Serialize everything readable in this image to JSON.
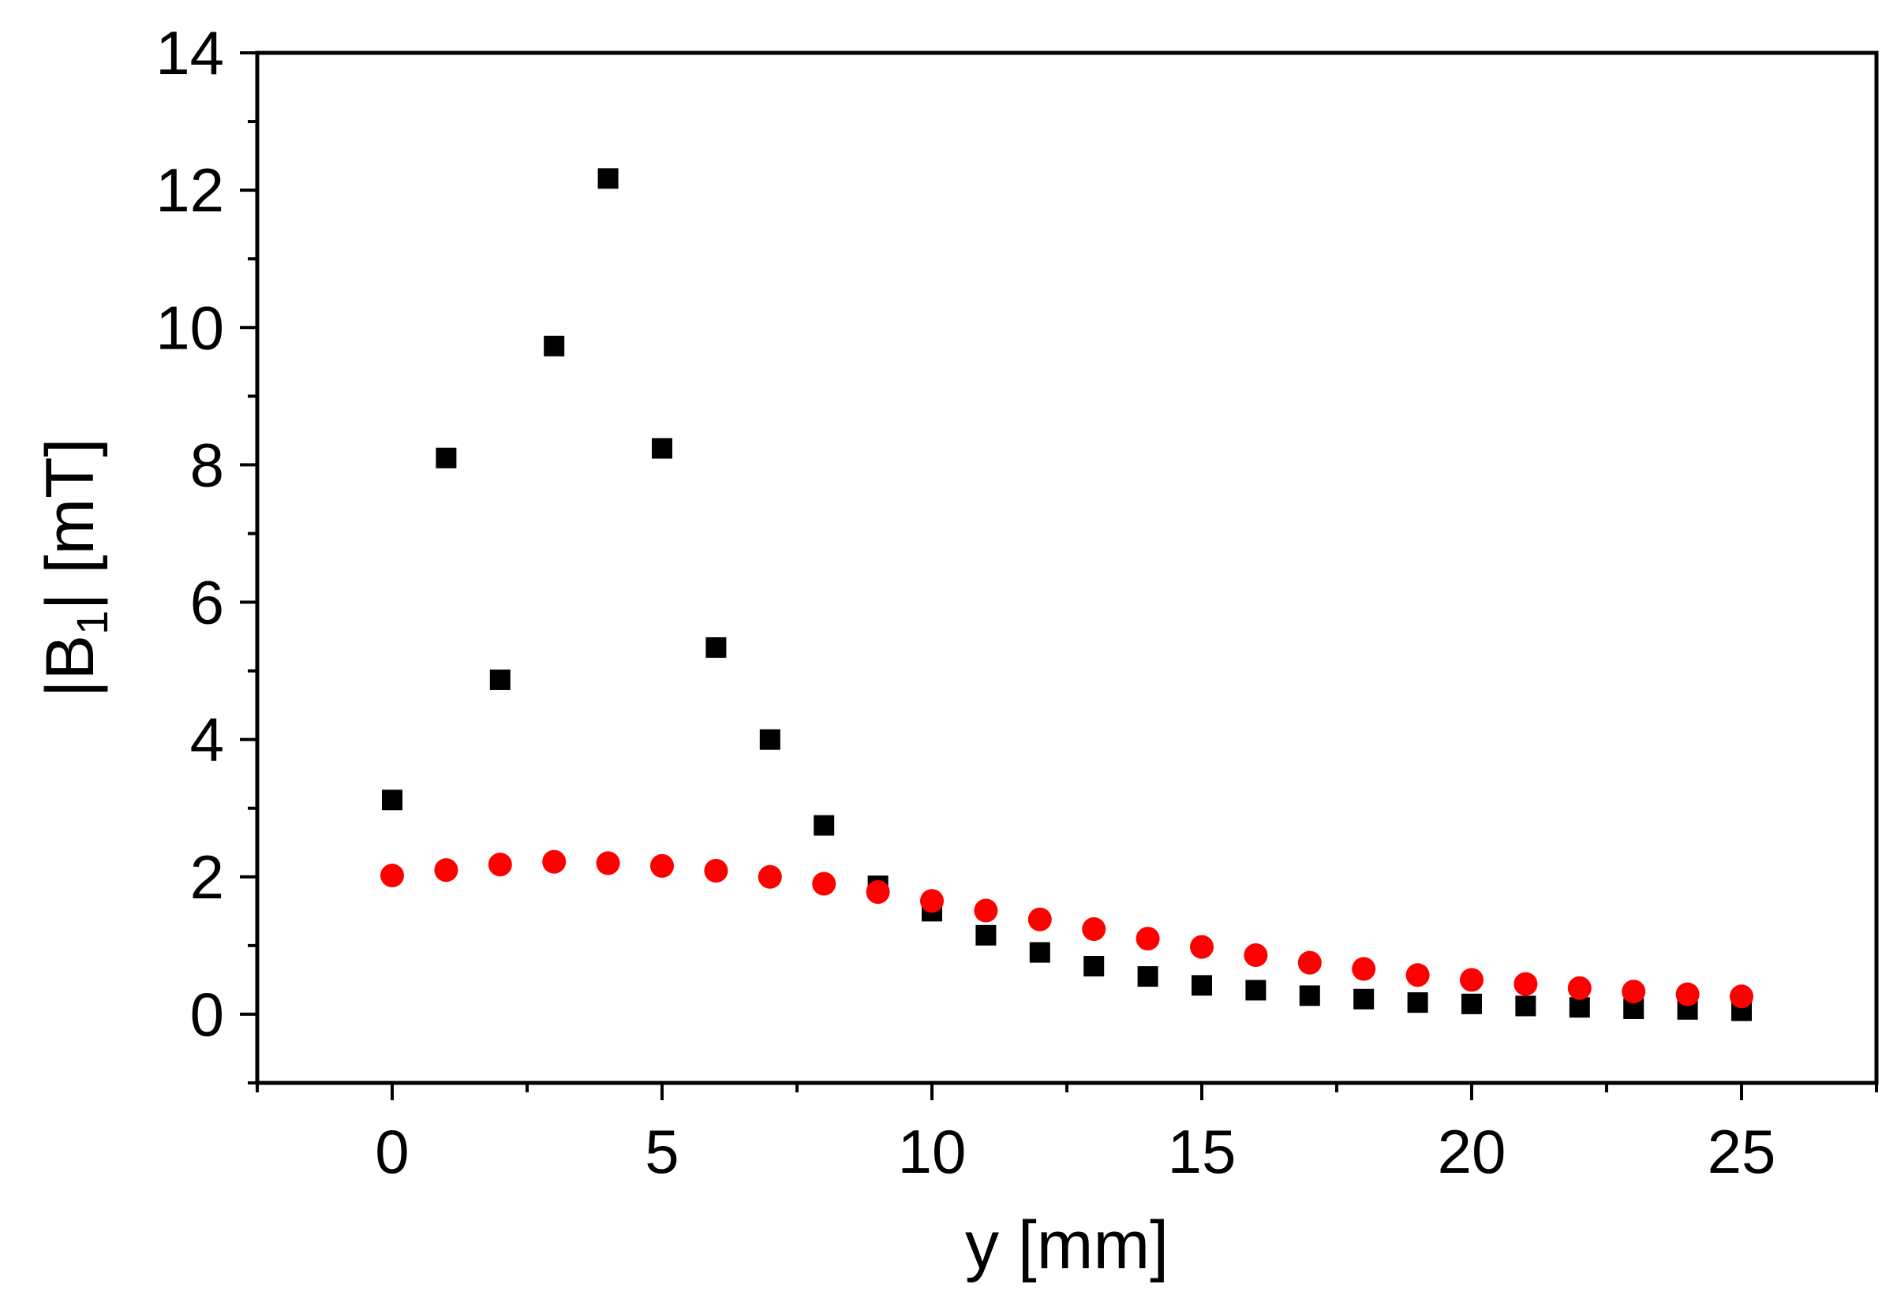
{
  "chart_data": {
    "type": "scatter",
    "title": "",
    "xlabel": "y [mm]",
    "ylabel": "|B1| [mT]",
    "ylabel_parts": {
      "before": "|B",
      "sub": "1",
      "after": "| [mT]"
    },
    "xlim": [
      -2.5,
      27.5
    ],
    "ylim": [
      -1,
      14
    ],
    "xticks": [
      0,
      5,
      10,
      15,
      20,
      25
    ],
    "yticks": [
      0,
      2,
      4,
      6,
      8,
      10,
      12,
      14
    ],
    "grid": false,
    "series": [
      {
        "name": "series-black-squares",
        "marker": "square",
        "color": "#000000",
        "x": [
          0,
          1,
          2,
          3,
          4,
          5,
          6,
          7,
          8,
          9,
          10,
          11,
          12,
          13,
          14,
          15,
          16,
          17,
          18,
          19,
          20,
          21,
          22,
          23,
          24,
          25
        ],
        "y": [
          3.12,
          8.1,
          4.87,
          9.73,
          12.17,
          8.24,
          5.34,
          4.0,
          2.75,
          1.87,
          1.5,
          1.15,
          0.9,
          0.7,
          0.55,
          0.42,
          0.35,
          0.27,
          0.22,
          0.17,
          0.15,
          0.12,
          0.1,
          0.08,
          0.07,
          0.05
        ]
      },
      {
        "name": "series-red-circles",
        "marker": "circle",
        "color": "#ff0000",
        "x": [
          0,
          1,
          2,
          3,
          4,
          5,
          6,
          7,
          8,
          9,
          10,
          11,
          12,
          13,
          14,
          15,
          16,
          17,
          18,
          19,
          20,
          21,
          22,
          23,
          24,
          25
        ],
        "y": [
          2.02,
          2.1,
          2.18,
          2.22,
          2.2,
          2.16,
          2.09,
          2.0,
          1.9,
          1.78,
          1.65,
          1.51,
          1.38,
          1.24,
          1.1,
          0.98,
          0.86,
          0.75,
          0.66,
          0.57,
          0.5,
          0.44,
          0.38,
          0.33,
          0.29,
          0.26
        ]
      }
    ]
  }
}
